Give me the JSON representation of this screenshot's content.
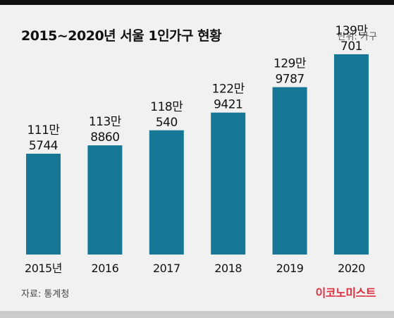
{
  "header": {
    "title": "2015~2020년 서울 1인가구 현황",
    "unit_label": "단위: 가구"
  },
  "footer": {
    "source": "자료: 통계청",
    "brand": "이코노미스트"
  },
  "colors": {
    "bar": "#167796",
    "background": "#f1f1f1",
    "brand": "#e03040"
  },
  "chart_data": {
    "type": "bar",
    "title": "2015~2020년 서울 1인가구 현황",
    "unit": "단위: 가구",
    "categories": [
      "2015년",
      "2016",
      "2017",
      "2018",
      "2019",
      "2020"
    ],
    "values": [
      1115744,
      1138860,
      1180540,
      1229421,
      1299787,
      1390701
    ],
    "value_labels": [
      [
        "111만",
        "5744"
      ],
      [
        "113만",
        "8860"
      ],
      [
        "118만",
        "540"
      ],
      [
        "122만",
        "9421"
      ],
      [
        "129만",
        "9787"
      ],
      [
        "139만",
        "701"
      ]
    ],
    "ylim": [
      0,
      1400000
    ],
    "grid": false,
    "legend": "none"
  }
}
